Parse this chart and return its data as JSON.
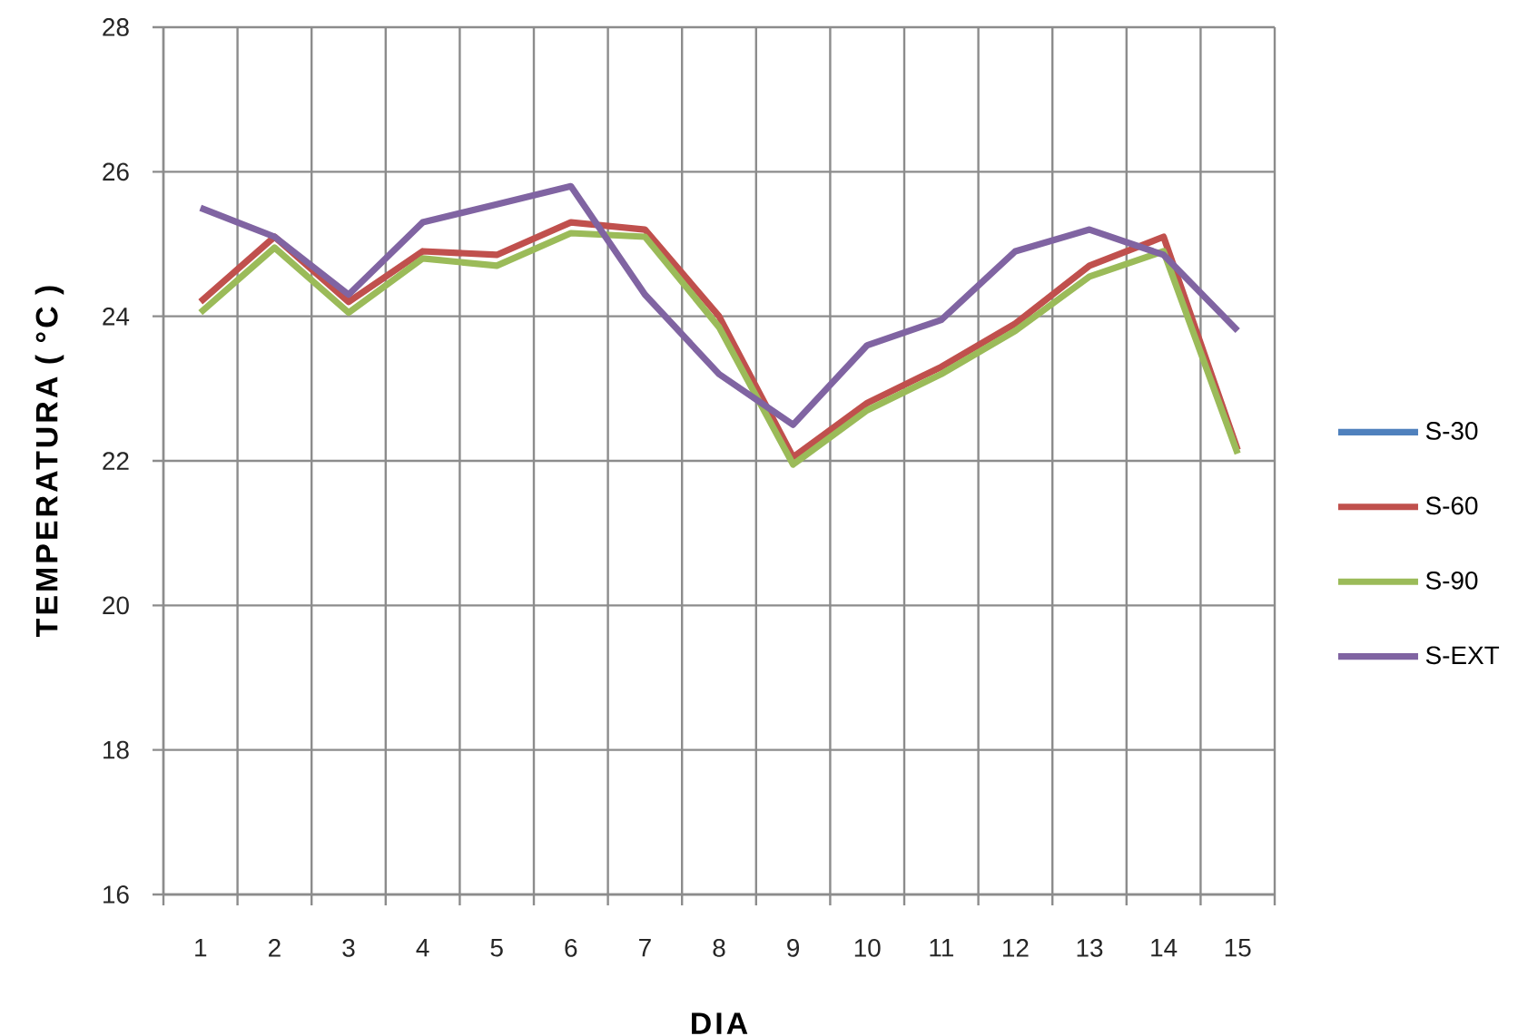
{
  "chart_data": {
    "type": "line",
    "xlabel": "DIA",
    "ylabel": "TEMPERATURA ( °C )",
    "categories": [
      "1",
      "2",
      "3",
      "4",
      "5",
      "6",
      "7",
      "8",
      "9",
      "10",
      "11",
      "12",
      "13",
      "14",
      "15"
    ],
    "ylim": [
      16,
      28
    ],
    "yticks": [
      16,
      18,
      20,
      22,
      24,
      26,
      28
    ],
    "grid": true,
    "legend": "right",
    "marker": "none",
    "line_style": "solid",
    "series": [
      {
        "name": "S-30",
        "color": "#4f81bd",
        "values": [
          null,
          null,
          null,
          null,
          null,
          null,
          null,
          null,
          null,
          null,
          null,
          null,
          null,
          null,
          null
        ]
      },
      {
        "name": "S-60",
        "color": "#c0504d",
        "values": [
          24.2,
          25.1,
          24.2,
          24.9,
          24.85,
          25.3,
          25.2,
          24.0,
          22.05,
          22.8,
          23.3,
          23.9,
          24.7,
          25.1,
          22.15
        ]
      },
      {
        "name": "S-90",
        "color": "#9bbb59",
        "values": [
          24.05,
          24.95,
          24.05,
          24.8,
          24.7,
          25.15,
          25.1,
          23.85,
          21.95,
          22.7,
          23.2,
          23.8,
          24.55,
          24.9,
          22.1
        ]
      },
      {
        "name": "S-EXT",
        "color": "#8064a2",
        "values": [
          25.5,
          25.1,
          24.3,
          25.3,
          25.55,
          25.8,
          24.3,
          23.2,
          22.5,
          23.6,
          23.95,
          24.9,
          25.2,
          24.85,
          23.8
        ]
      }
    ]
  }
}
